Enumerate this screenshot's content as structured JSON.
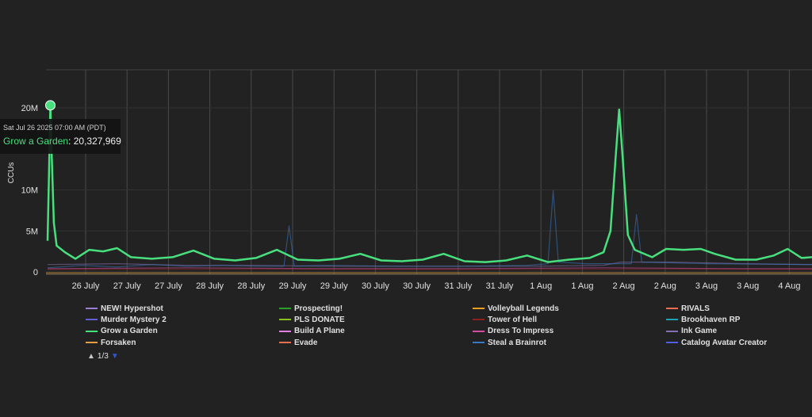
{
  "chart_data": {
    "type": "line",
    "title": "",
    "xlabel": "",
    "ylabel": "CCUs",
    "ylim": [
      0,
      20000000
    ],
    "y_ticks": [
      {
        "label": "0",
        "value": 0
      },
      {
        "label": "5M",
        "value": 5000000
      },
      {
        "label": "10M",
        "value": 10000000
      },
      {
        "label": "20M",
        "value": 20000000
      }
    ],
    "x_tick_labels": [
      "26 July",
      "27 July",
      "27 July",
      "28 July",
      "28 July",
      "29 July",
      "29 July",
      "30 July",
      "30 July",
      "31 July",
      "31 July",
      "1 Aug",
      "1 Aug",
      "2 Aug",
      "2 Aug",
      "3 Aug",
      "3 Aug",
      "4 Aug"
    ],
    "grid": true,
    "x_range_hours": [
      0,
      220
    ],
    "series": [
      {
        "name": "Grow a Garden",
        "color": "#48e07e",
        "points": [
          [
            0,
            3.8
          ],
          [
            0.4,
            12
          ],
          [
            0.8,
            20.3
          ],
          [
            1.2,
            14
          ],
          [
            1.8,
            6
          ],
          [
            2.6,
            3.2
          ],
          [
            5,
            2.4
          ],
          [
            8,
            1.6
          ],
          [
            12,
            2.7
          ],
          [
            16,
            2.5
          ],
          [
            20,
            2.9
          ],
          [
            24,
            1.8
          ],
          [
            30,
            1.6
          ],
          [
            36,
            1.8
          ],
          [
            42,
            2.6
          ],
          [
            48,
            1.6
          ],
          [
            54,
            1.4
          ],
          [
            60,
            1.7
          ],
          [
            66,
            2.7
          ],
          [
            72,
            1.5
          ],
          [
            78,
            1.4
          ],
          [
            84,
            1.6
          ],
          [
            90,
            2.2
          ],
          [
            96,
            1.4
          ],
          [
            102,
            1.3
          ],
          [
            108,
            1.5
          ],
          [
            114,
            2.2
          ],
          [
            120,
            1.3
          ],
          [
            126,
            1.2
          ],
          [
            132,
            1.4
          ],
          [
            138,
            2.0
          ],
          [
            144,
            1.2
          ],
          [
            150,
            1.5
          ],
          [
            156,
            1.7
          ],
          [
            160,
            2.4
          ],
          [
            162,
            5
          ],
          [
            163.5,
            14
          ],
          [
            164.5,
            19.8
          ],
          [
            165.5,
            14
          ],
          [
            167,
            4.5
          ],
          [
            169,
            2.7
          ],
          [
            174,
            1.8
          ],
          [
            178,
            2.8
          ],
          [
            183,
            2.7
          ],
          [
            188,
            2.8
          ],
          [
            192,
            2.2
          ],
          [
            198,
            1.5
          ],
          [
            204,
            1.5
          ],
          [
            209,
            2.0
          ],
          [
            213,
            2.8
          ],
          [
            217,
            1.7
          ],
          [
            220,
            1.8
          ]
        ]
      },
      {
        "name": "Steal a Brainrot",
        "color": "#3a78c0",
        "points": [
          [
            0,
            0.5
          ],
          [
            10,
            0.8
          ],
          [
            20,
            0.6
          ],
          [
            30,
            0.9
          ],
          [
            40,
            0.7
          ],
          [
            50,
            0.8
          ],
          [
            60,
            0.7
          ],
          [
            68,
            0.7
          ],
          [
            69.5,
            5.6
          ],
          [
            71,
            0.7
          ],
          [
            80,
            0.8
          ],
          [
            100,
            0.7
          ],
          [
            120,
            0.7
          ],
          [
            138,
            0.8
          ],
          [
            144,
            1.0
          ],
          [
            145.5,
            9.9
          ],
          [
            147,
            1.2
          ],
          [
            155,
            1.0
          ],
          [
            168,
            1.0
          ],
          [
            169.5,
            7.0
          ],
          [
            171,
            1.2
          ],
          [
            190,
            1.0
          ],
          [
            220,
            0.9
          ]
        ]
      },
      {
        "name": "Ink Game",
        "color": "#8a6fb0",
        "points": [
          [
            0,
            0.9
          ],
          [
            20,
            1.0
          ],
          [
            40,
            0.8
          ],
          [
            60,
            0.8
          ],
          [
            80,
            0.7
          ],
          [
            100,
            0.7
          ],
          [
            120,
            0.7
          ],
          [
            140,
            0.7
          ],
          [
            160,
            0.8
          ],
          [
            165,
            1.2
          ],
          [
            180,
            1.2
          ],
          [
            200,
            1.0
          ],
          [
            220,
            0.9
          ]
        ]
      },
      {
        "name": "Dress To Impress",
        "color": "#d04ea0",
        "points": [
          [
            0,
            0.4
          ],
          [
            40,
            0.5
          ],
          [
            80,
            0.4
          ],
          [
            120,
            0.4
          ],
          [
            160,
            0.5
          ],
          [
            200,
            0.4
          ],
          [
            220,
            0.4
          ]
        ]
      },
      {
        "name": "Tower of Hell",
        "color": "#8a2222",
        "points": [
          [
            0,
            0.3
          ],
          [
            60,
            0.35
          ],
          [
            120,
            0.3
          ],
          [
            180,
            0.35
          ],
          [
            220,
            0.3
          ]
        ]
      }
    ]
  },
  "tooltip": {
    "date": "Sat Jul 26 2025 07:00 AM (PDT)",
    "series": "Grow a Garden",
    "value": "20,327,969",
    "color": "#48e07e"
  },
  "legend": {
    "items": [
      {
        "label": "NEW! Hypershot",
        "color": "#9a7fd0"
      },
      {
        "label": "Prospecting!",
        "color": "#2aa02a"
      },
      {
        "label": "Volleyball Legends",
        "color": "#e8a020"
      },
      {
        "label": "RIVALS",
        "color": "#e87050"
      },
      {
        "label": "Murder Mystery 2",
        "color": "#6060d0"
      },
      {
        "label": "PLS DONATE",
        "color": "#8ac020"
      },
      {
        "label": "Tower of Hell",
        "color": "#8a2222"
      },
      {
        "label": "Brookhaven RP",
        "color": "#20a0b0"
      },
      {
        "label": "Grow a Garden",
        "color": "#48e07e"
      },
      {
        "label": "Build A Plane",
        "color": "#e080e0"
      },
      {
        "label": "Dress To Impress",
        "color": "#d04ea0"
      },
      {
        "label": "Ink Game",
        "color": "#8a6fb0"
      },
      {
        "label": "Forsaken",
        "color": "#e0a040"
      },
      {
        "label": "Evade",
        "color": "#e07050"
      },
      {
        "label": "Steal a Brainrot",
        "color": "#3a78c0"
      },
      {
        "label": "Catalog Avatar Creator",
        "color": "#5060e0"
      }
    ],
    "pager": "1/3"
  }
}
